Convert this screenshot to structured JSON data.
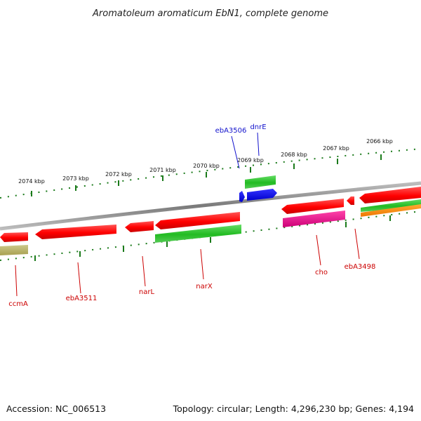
{
  "header": {
    "title": "Aromatoleum aromaticum EbN1, complete genome"
  },
  "footer": {
    "accession": "Accession: NC_006513",
    "summary": "Topology: circular; Length: 4,296,230 bp; Genes: 4,194"
  },
  "ruler": {
    "ticks": [
      {
        "label": "2074 kbp"
      },
      {
        "label": "2073 kbp"
      },
      {
        "label": "2072 kbp"
      },
      {
        "label": "2071 kbp"
      },
      {
        "label": "2070 kbp"
      },
      {
        "label": "2069 kbp"
      },
      {
        "label": "2068 kbp"
      },
      {
        "label": "2067 kbp"
      },
      {
        "label": "2066 kbp"
      }
    ]
  },
  "gene_labels": {
    "ccmA": "ccmA",
    "ebA3511": "ebA3511",
    "narL": "narL",
    "narX": "narX",
    "cho": "cho",
    "ebA3498": "ebA3498",
    "ebA3506": "ebA3506",
    "dnrE": "dnrE"
  },
  "colors": {
    "cds_forward": "#ff1a1a",
    "cds_green": "#33cc33",
    "cds_blue": "#1111ee",
    "cds_magenta": "#ee1199",
    "cds_orange": "#ff8800",
    "cds_olive": "#b5b060",
    "backbone": "#888888",
    "ruler": "#1a7a1a",
    "label_red": "#cc0000",
    "label_blue": "#1111cc"
  }
}
